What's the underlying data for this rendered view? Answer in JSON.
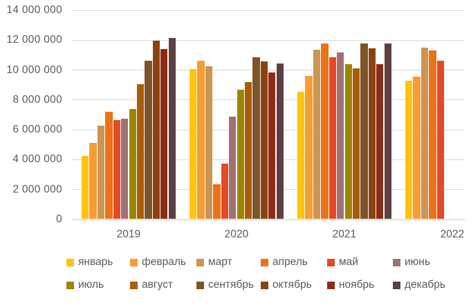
{
  "chart_data": {
    "type": "bar",
    "title": "",
    "xlabel": "",
    "ylabel": "",
    "categories": [
      "2019",
      "2020",
      "2021",
      "2022"
    ],
    "series": [
      {
        "name": "январь",
        "color": "#FFC30D",
        "values": [
          4250000,
          10050000,
          8550000,
          9300000
        ]
      },
      {
        "name": "февраль",
        "color": "#F59D32",
        "values": [
          5150000,
          10650000,
          9600000,
          9550000
        ]
      },
      {
        "name": "март",
        "color": "#CB9553",
        "values": [
          6300000,
          10250000,
          11350000,
          11500000
        ]
      },
      {
        "name": "апрель",
        "color": "#ED7217",
        "values": [
          7200000,
          2350000,
          11800000,
          11300000
        ]
      },
      {
        "name": "май",
        "color": "#E44A26",
        "values": [
          6650000,
          3750000,
          10850000,
          10650000
        ]
      },
      {
        "name": "июнь",
        "color": "#A17072",
        "values": [
          6750000,
          6900000,
          11200000,
          null
        ]
      },
      {
        "name": "июль",
        "color": "#9D8404",
        "values": [
          7400000,
          8700000,
          10400000,
          null
        ]
      },
      {
        "name": "август",
        "color": "#A85D08",
        "values": [
          9050000,
          9200000,
          10100000,
          null
        ]
      },
      {
        "name": "сентябрь",
        "color": "#7C5427",
        "values": [
          10650000,
          10850000,
          11800000,
          null
        ]
      },
      {
        "name": "октябрь",
        "color": "#8C4210",
        "values": [
          11950000,
          10600000,
          11450000,
          null
        ]
      },
      {
        "name": "ноябрь",
        "color": "#8E2B17",
        "values": [
          11400000,
          9850000,
          10400000,
          null
        ]
      },
      {
        "name": "декабрь",
        "color": "#5D4042",
        "values": [
          12150000,
          10450000,
          11800000,
          null
        ]
      }
    ],
    "ylim": [
      0,
      14000000
    ],
    "ytick_interval": 2000000,
    "ytick_labels": [
      "0",
      "2 000 000",
      "4 000 000",
      "6 000 000",
      "8 000 000",
      "10 000 000",
      "12 000 000",
      "14 000 000"
    ],
    "grid": true,
    "legend_position": "bottom",
    "legend_rows": 2,
    "colors": {
      "grid_line": "#D9D9D9",
      "axis_line": "#C9C7C7",
      "text": "#595959"
    }
  }
}
